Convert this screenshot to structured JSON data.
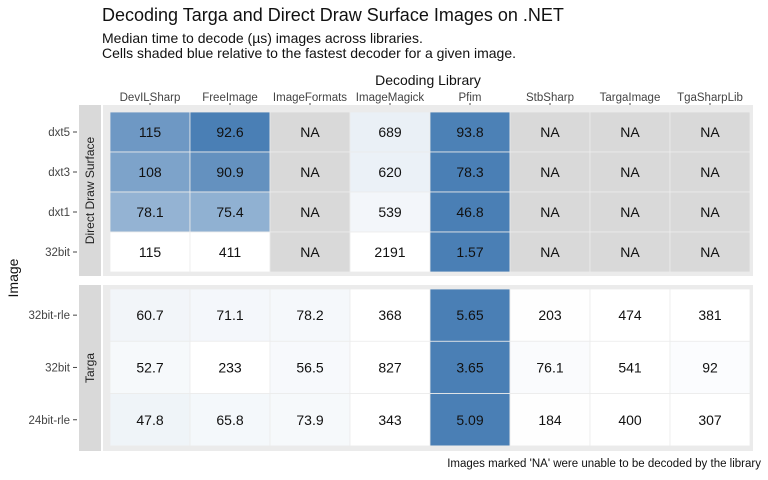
{
  "title": "Decoding Targa and Direct Draw Surface Images on .NET",
  "subtitle_lines": [
    "Median time to decode (µs) images across libraries.",
    "Cells shaded blue relative to the fastest decoder for a given image."
  ],
  "caption": "Images marked 'NA' were unable to be decoded by the library",
  "colors": {
    "fastest": "#4a7fb5",
    "slowest": "#ffffff",
    "na": "#d9d9d9",
    "panel_bg": "#ebebeb",
    "strip_bg": "#d9d9d9"
  },
  "chart_data": {
    "type": "heatmap",
    "title": "Decoding Targa and Direct Draw Surface Images on .NET",
    "xlabel": "Decoding Library",
    "ylabel": "Image",
    "x_axis_position": "top",
    "columns": [
      "DevILSharp",
      "FreeImage",
      "ImageFormats",
      "ImageMagick",
      "Pfim",
      "StbSharp",
      "TargaImage",
      "TgaSharpLib"
    ],
    "na_label": "NA",
    "facets": [
      {
        "name": "Direct Draw Surface",
        "rows": [
          "dxt5",
          "dxt3",
          "dxt1",
          "32bit"
        ],
        "values": [
          [
            115,
            92.6,
            null,
            689,
            93.8,
            null,
            null,
            null
          ],
          [
            108,
            90.9,
            null,
            620,
            78.3,
            null,
            null,
            null
          ],
          [
            78.1,
            75.4,
            null,
            539,
            46.8,
            null,
            null,
            null
          ],
          [
            115,
            411,
            null,
            2191,
            1.57,
            null,
            null,
            null
          ]
        ]
      },
      {
        "name": "Targa",
        "rows": [
          "32bit-rle",
          "32bit",
          "24bit-rle"
        ],
        "values": [
          [
            60.7,
            71.1,
            78.2,
            368,
            5.65,
            203,
            474,
            381
          ],
          [
            52.7,
            233,
            56.5,
            827,
            3.65,
            76.1,
            541,
            92
          ],
          [
            47.8,
            65.8,
            73.9,
            343,
            5.09,
            184,
            400,
            307
          ]
        ]
      }
    ]
  }
}
